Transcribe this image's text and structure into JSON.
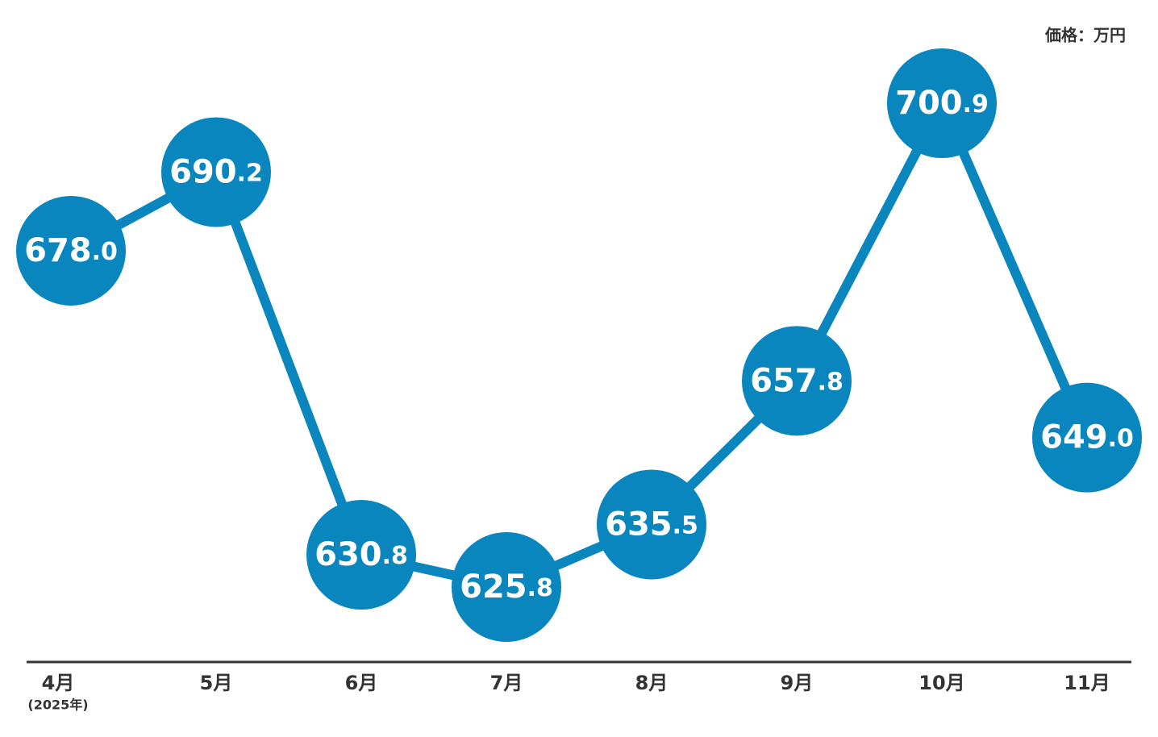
{
  "chart_data": {
    "type": "line",
    "unit_label": "価格：万円",
    "categories": [
      "4月",
      "5月",
      "6月",
      "7月",
      "8月",
      "9月",
      "10月",
      "11月"
    ],
    "first_category_note": "(2025年)",
    "series": [
      {
        "name": "価格",
        "color": "#0a86bf",
        "values": [
          678.0,
          690.2,
          630.8,
          625.8,
          635.5,
          657.8,
          700.9,
          649.0
        ],
        "value_labels": [
          "678.0",
          "690.2",
          "630.8",
          "625.8",
          "635.5",
          "657.8",
          "700.9",
          "649.0"
        ]
      }
    ]
  }
}
